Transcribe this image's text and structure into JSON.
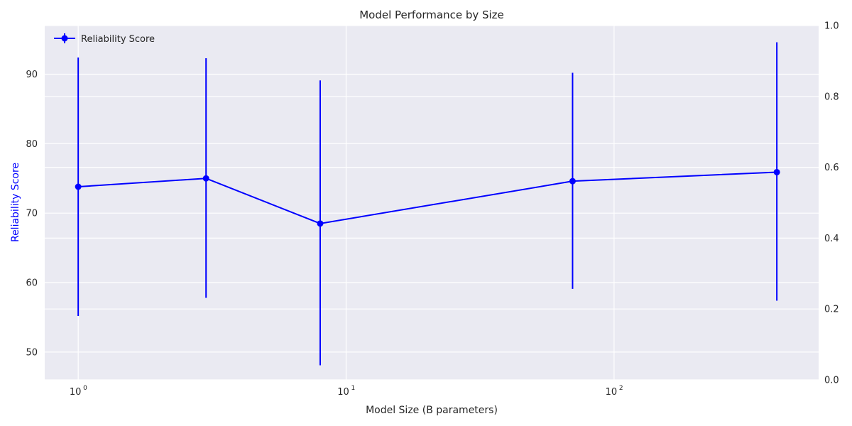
{
  "chart_data": {
    "type": "line",
    "title": "Model Performance by Size",
    "xlabel": "Model Size (B parameters)",
    "ylabel": "Reliability Score",
    "x_scale": "log",
    "xlim": [
      0.75,
      580
    ],
    "ylim": [
      46,
      97
    ],
    "y2lim": [
      0,
      1
    ],
    "x_ticks": [
      1,
      10,
      100
    ],
    "x_tick_labels": [
      {
        "base": "10",
        "exp": "0"
      },
      {
        "base": "10",
        "exp": "1"
      },
      {
        "base": "10",
        "exp": "2"
      }
    ],
    "y_ticks": [
      50,
      60,
      70,
      80,
      90
    ],
    "y_tick_labels": [
      "50",
      "60",
      "70",
      "80",
      "90"
    ],
    "y2_ticks": [
      0,
      0.2,
      0.4,
      0.6,
      0.8,
      1.0
    ],
    "y2_tick_labels": [
      "0.0",
      "0.2",
      "0.4",
      "0.6",
      "0.8",
      "1.0"
    ],
    "grid": true,
    "legend_position": "top-left",
    "series": [
      {
        "name": "Reliability Score",
        "color": "#0000ff",
        "x": [
          1,
          3,
          8,
          70,
          405
        ],
        "y": [
          73.8,
          75.0,
          68.5,
          74.6,
          75.9
        ],
        "error_low": [
          55.2,
          57.8,
          48.1,
          59.1,
          57.4
        ],
        "error_high": [
          92.4,
          92.3,
          89.1,
          90.2,
          94.6
        ]
      }
    ],
    "colors": {
      "plot_background": "#eaeaf2",
      "grid": "#ffffff",
      "ylabel": "#0000ff",
      "text": "#262626"
    }
  }
}
